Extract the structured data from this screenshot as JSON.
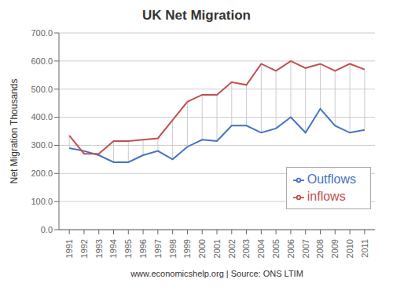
{
  "chart_data": {
    "type": "line",
    "title": "UK Net Migration",
    "xlabel": "www.economicshelp.org | Source: ONS LTIM",
    "ylabel": "Net Migration Thousands",
    "x": [
      1991,
      1992,
      1993,
      1994,
      1995,
      1996,
      1997,
      1998,
      1999,
      2000,
      2001,
      2002,
      2003,
      2004,
      2005,
      2006,
      2007,
      2008,
      2009,
      2010,
      2011
    ],
    "series": [
      {
        "name": "Outflows",
        "color": "#4472C4",
        "values": [
          290,
          280,
          265,
          240,
          240,
          265,
          280,
          250,
          295,
          320,
          315,
          370,
          370,
          345,
          360,
          400,
          345,
          430,
          370,
          345,
          355
        ]
      },
      {
        "name": "inflows",
        "color": "#C0504D",
        "values": [
          335,
          270,
          270,
          315,
          315,
          320,
          325,
          390,
          455,
          480,
          480,
          525,
          515,
          590,
          565,
          600,
          575,
          590,
          565,
          590,
          570
        ]
      }
    ],
    "xlim": [
      1990.3,
      2011.7
    ],
    "xticks": [
      1991,
      1992,
      1993,
      1994,
      1995,
      1996,
      1997,
      1998,
      1999,
      2000,
      2001,
      2002,
      2003,
      2004,
      2005,
      2006,
      2007,
      2008,
      2009,
      2010,
      2011
    ],
    "ylim": [
      0,
      700
    ],
    "yticks": [
      {
        "value": 0,
        "label": "0.0"
      },
      {
        "value": 100,
        "label": "100.0"
      },
      {
        "value": 200,
        "label": "200.0"
      },
      {
        "value": 300,
        "label": "300.0"
      },
      {
        "value": 400,
        "label": "400.0"
      },
      {
        "value": 500,
        "label": "500.0"
      },
      {
        "value": 600,
        "label": "600.0"
      },
      {
        "value": 700,
        "label": "700.0"
      }
    ],
    "grid": "y",
    "legend": "lower right"
  }
}
